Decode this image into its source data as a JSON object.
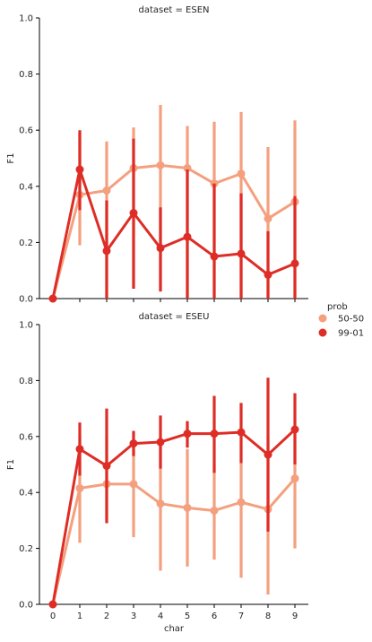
{
  "chart_data": [
    {
      "type": "line",
      "title": "dataset = ESEN",
      "xlabel": "",
      "ylabel": "F1",
      "ylim": [
        0,
        1
      ],
      "yticks": [
        "0.0",
        "0.2",
        "0.4",
        "0.6",
        "0.8",
        "1.0"
      ],
      "categories": [],
      "x": [
        0,
        1,
        2,
        3,
        4,
        5,
        6,
        7,
        8,
        9
      ],
      "series": [
        {
          "name": "50-50",
          "color": "#f4a07f",
          "values": [
            0.0,
            0.37,
            0.385,
            0.465,
            0.475,
            0.465,
            0.41,
            0.445,
            0.285,
            0.345
          ],
          "err_low": [
            0.0,
            0.19,
            0.0,
            0.035,
            0.03,
            0.0,
            0.0,
            0.0,
            0.0,
            0.0
          ],
          "err_high": [
            0.0,
            0.595,
            0.56,
            0.61,
            0.69,
            0.615,
            0.63,
            0.665,
            0.54,
            0.635
          ]
        },
        {
          "name": "99-01",
          "color": "#de2d26",
          "values": [
            0.0,
            0.46,
            0.17,
            0.305,
            0.18,
            0.22,
            0.15,
            0.16,
            0.085,
            0.125
          ],
          "err_low": [
            0.0,
            0.315,
            0.0,
            0.035,
            0.025,
            0.0,
            0.0,
            0.0,
            0.0,
            0.0
          ],
          "err_high": [
            0.0,
            0.6,
            0.35,
            0.57,
            0.325,
            0.46,
            0.41,
            0.375,
            0.24,
            0.365
          ]
        }
      ]
    },
    {
      "type": "line",
      "title": "dataset = ESEU",
      "xlabel": "char",
      "ylabel": "F1",
      "ylim": [
        0,
        1
      ],
      "yticks": [
        "0.0",
        "0.2",
        "0.4",
        "0.6",
        "0.8",
        "1.0"
      ],
      "categories": [
        "0",
        "1",
        "2",
        "3",
        "4",
        "5",
        "6",
        "7",
        "8",
        "9"
      ],
      "x": [
        0,
        1,
        2,
        3,
        4,
        5,
        6,
        7,
        8,
        9
      ],
      "series": [
        {
          "name": "50-50",
          "color": "#f4a07f",
          "values": [
            0.0,
            0.415,
            0.43,
            0.43,
            0.36,
            0.345,
            0.335,
            0.365,
            0.34,
            0.45
          ],
          "err_low": [
            0.0,
            0.22,
            0.3,
            0.24,
            0.12,
            0.135,
            0.16,
            0.095,
            0.035,
            0.2
          ],
          "err_high": [
            0.0,
            0.6,
            0.6,
            0.55,
            0.6,
            0.555,
            0.505,
            0.505,
            0.6,
            0.625
          ]
        },
        {
          "name": "99-01",
          "color": "#de2d26",
          "values": [
            0.0,
            0.555,
            0.495,
            0.575,
            0.58,
            0.61,
            0.61,
            0.615,
            0.535,
            0.625
          ],
          "err_low": [
            0.0,
            0.46,
            0.29,
            0.53,
            0.485,
            0.56,
            0.47,
            0.505,
            0.26,
            0.5
          ],
          "err_high": [
            0.0,
            0.65,
            0.7,
            0.62,
            0.675,
            0.655,
            0.745,
            0.72,
            0.81,
            0.755
          ]
        }
      ]
    }
  ],
  "legend": {
    "title": "prob",
    "items": [
      {
        "label": "50-50",
        "color": "#f4a07f"
      },
      {
        "label": "99-01",
        "color": "#de2d26"
      }
    ]
  }
}
